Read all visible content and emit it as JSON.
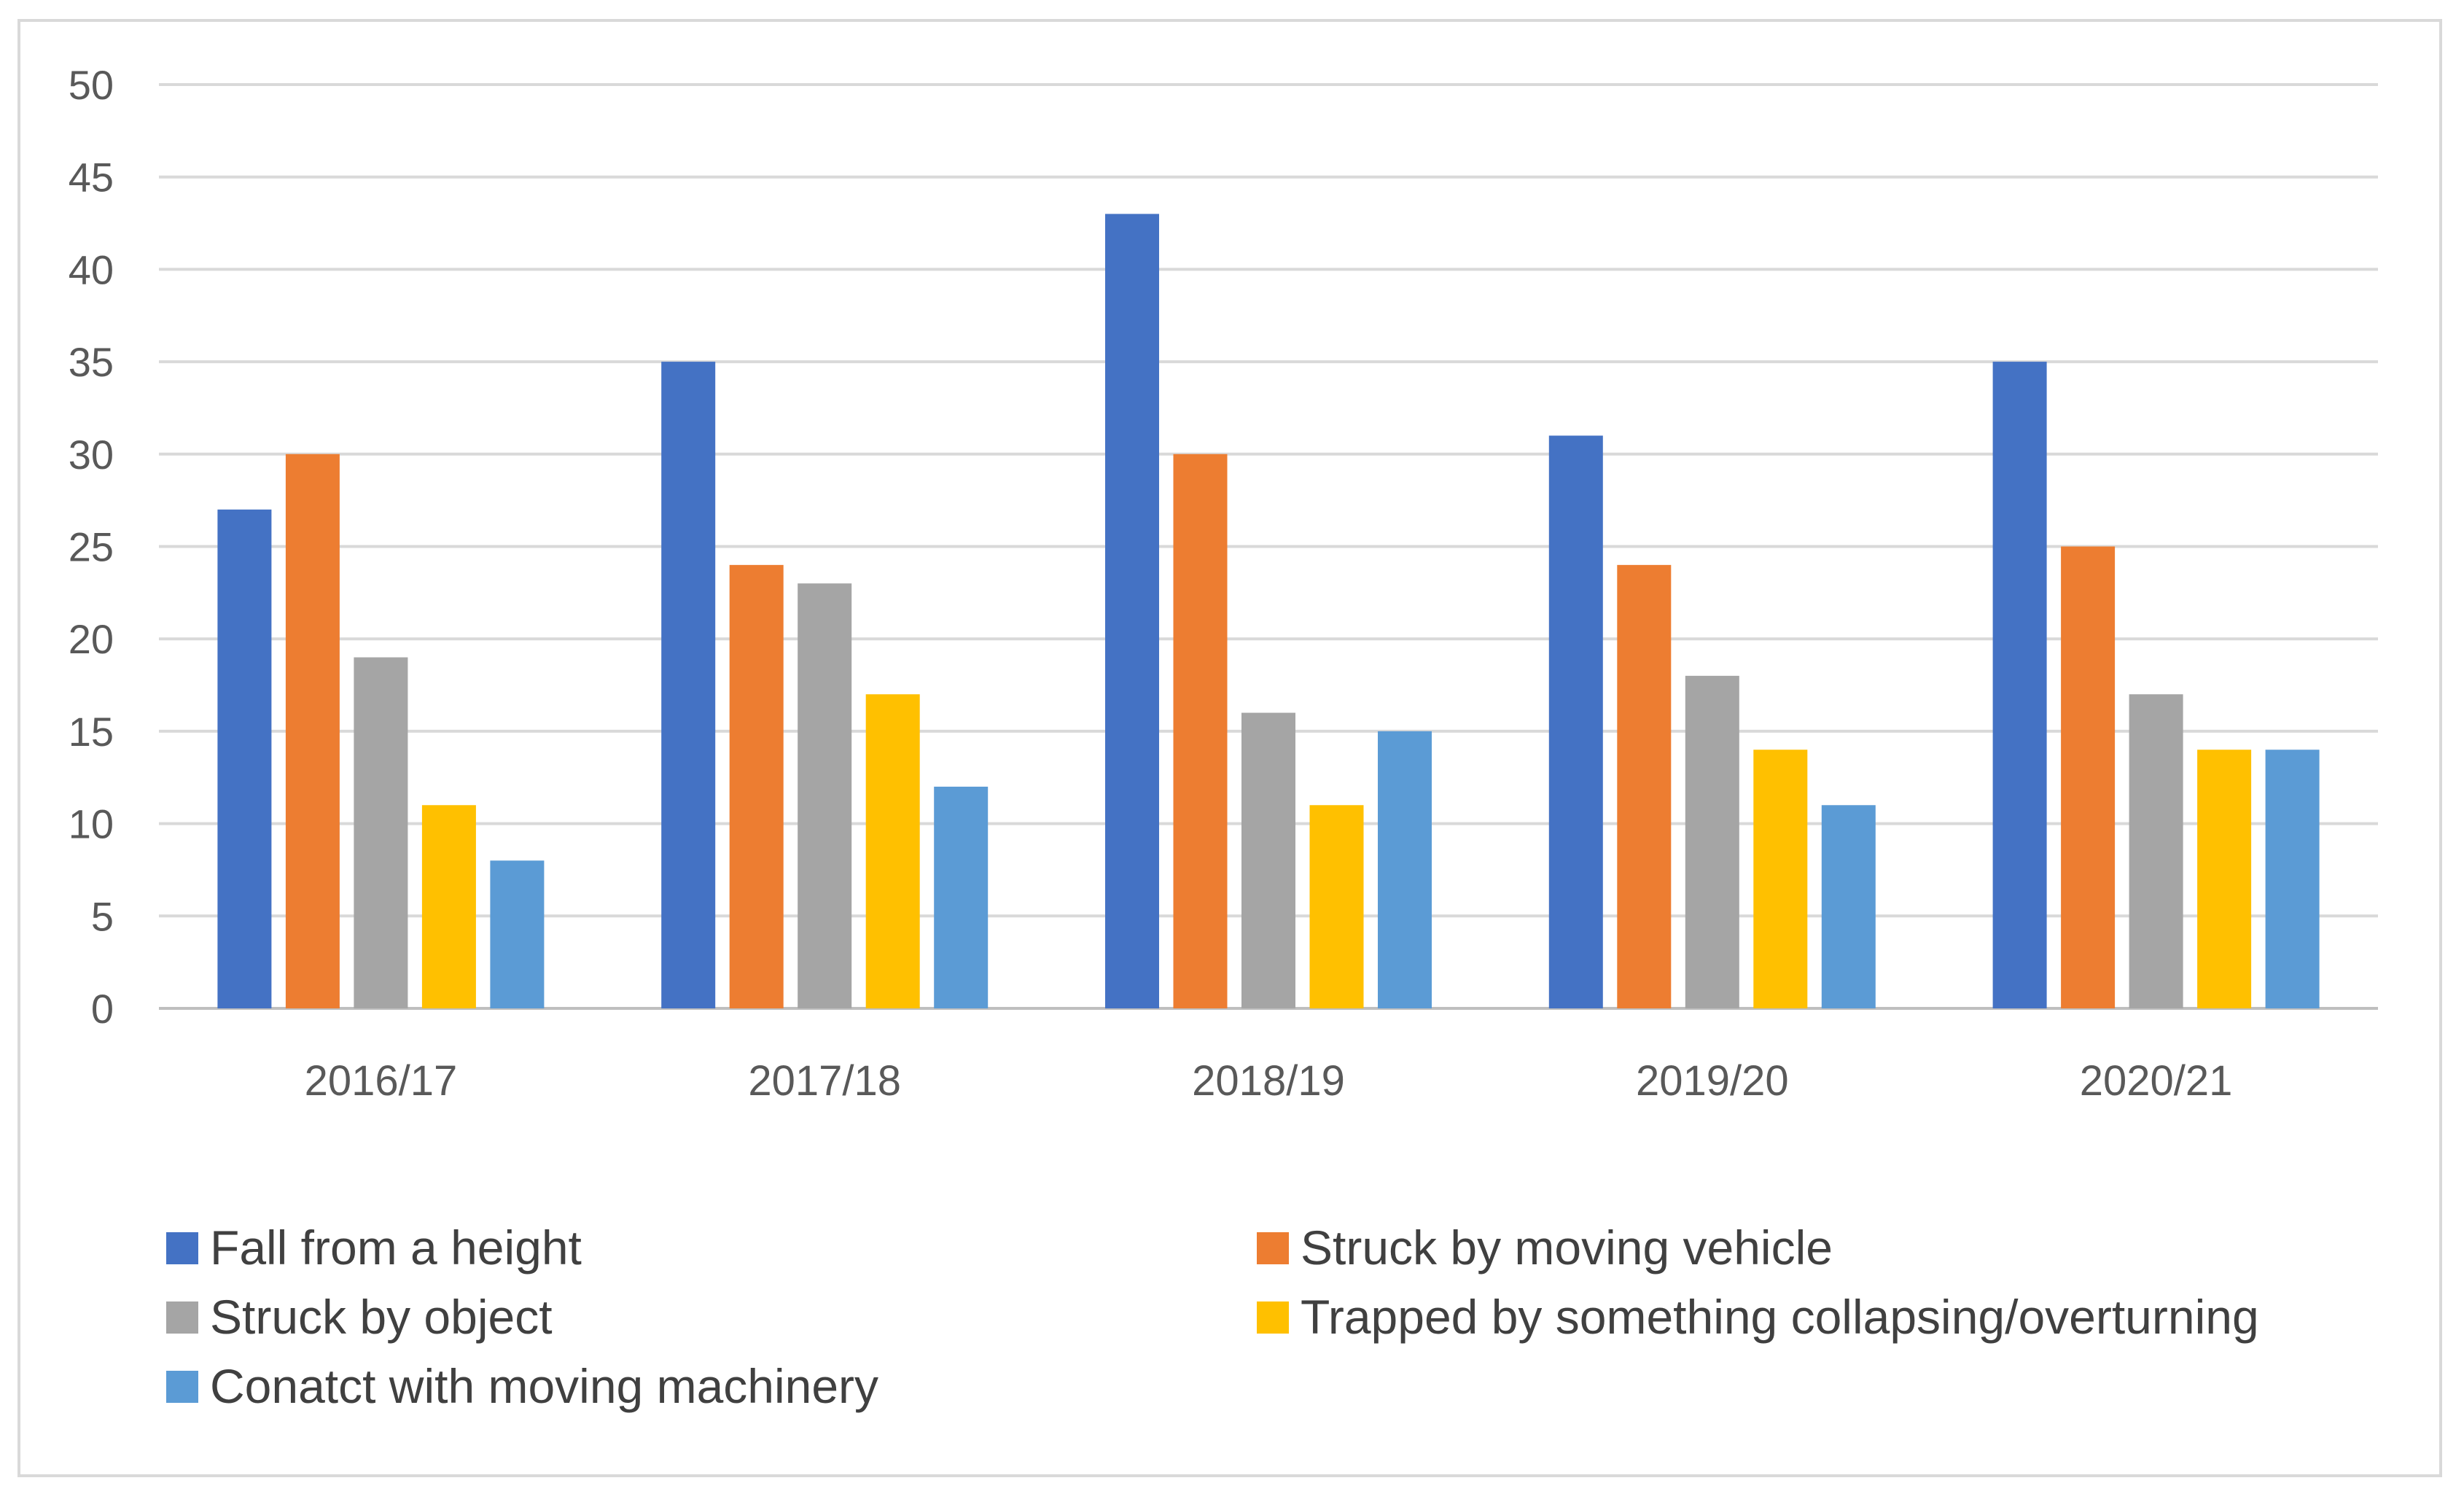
{
  "chart_data": {
    "type": "bar",
    "title": "",
    "xlabel": "",
    "ylabel": "",
    "ylim": [
      0,
      50
    ],
    "yticks": [
      0,
      5,
      10,
      15,
      20,
      25,
      30,
      35,
      40,
      45,
      50
    ],
    "grid": true,
    "legend_position": "bottom",
    "categories": [
      "2016/17",
      "2017/18",
      "2018/19",
      "2019/20",
      "2020/21"
    ],
    "series": [
      {
        "name": "Fall from a height",
        "color": "#4472C4",
        "values": [
          27,
          35,
          43,
          31,
          35
        ]
      },
      {
        "name": "Struck by moving vehicle",
        "color": "#ED7D31",
        "values": [
          30,
          24,
          30,
          24,
          25
        ]
      },
      {
        "name": "Struck by object",
        "color": "#A5A5A5",
        "values": [
          19,
          23,
          16,
          18,
          17
        ]
      },
      {
        "name": "Trapped by something collapsing/overturning",
        "color": "#FFC000",
        "values": [
          11,
          17,
          11,
          14,
          14
        ]
      },
      {
        "name": "Conatct with moving machinery",
        "color": "#5B9BD5",
        "values": [
          8,
          12,
          15,
          11,
          14
        ]
      }
    ]
  }
}
